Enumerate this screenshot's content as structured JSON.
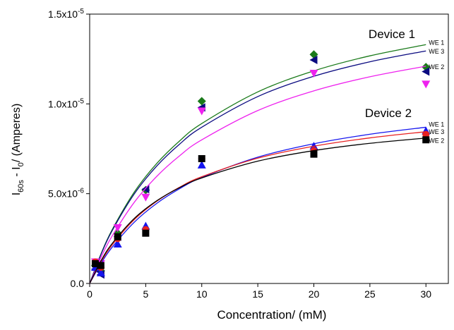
{
  "chart_data": {
    "type": "scatter",
    "x_label": "Concentration/ (mM)",
    "y_label": [
      "I",
      "60s",
      " - I",
      "0",
      "/ (Amperes)"
    ],
    "xlim": [
      0,
      32
    ],
    "xticks": [
      0,
      5,
      10,
      15,
      20,
      25,
      30
    ],
    "ylim": [
      0,
      1.5e-05
    ],
    "yticks": [
      {
        "value": 0,
        "label": [
          "0.0"
        ]
      },
      {
        "value": 5e-06,
        "label": [
          "5.0x10",
          "-6"
        ]
      },
      {
        "value": 1e-05,
        "label": [
          "1.0x10",
          "-5"
        ]
      },
      {
        "value": 1.5e-05,
        "label": [
          "1.5x10",
          "-5"
        ]
      }
    ],
    "x": [
      0.5,
      1,
      2.5,
      5,
      10,
      20,
      30
    ],
    "fit_x": [
      0,
      1,
      2,
      4,
      6,
      8,
      10,
      15,
      20,
      25,
      30
    ],
    "groups": [
      {
        "name": "Device 1",
        "series": [
          {
            "name": "WE 1",
            "color": "#1a7a1a",
            "marker": "diamond",
            "values": [
              1e-06,
              7e-07,
              2.8e-06,
              5.2e-06,
              1.015e-05,
              1.275e-05,
              1.205e-05
            ],
            "fit": [
              0,
              1.631e-06,
              2.986e-06,
              5.108e-06,
              6.694e-06,
              7.924e-06,
              8.906e-06,
              1.0668e-05,
              1.184e-05,
              1.2676e-05,
              1.33e-05
            ]
          },
          {
            "name": "WE 3",
            "color": "#0a0a80",
            "marker": "left-triangle",
            "values": [
              8e-07,
              5e-07,
              2.6e-06,
              5.25e-06,
              9.8e-06,
              1.245e-05,
              1.18e-05
            ],
            "fit": [
              0,
              1.602e-06,
              2.931e-06,
              5.005e-06,
              6.551e-06,
              7.747e-06,
              8.7e-06,
              1.0407e-05,
              1.1539e-05,
              1.2345e-05,
              1.295e-05
            ]
          },
          {
            "name": "WE 2",
            "color": "#ee22ee",
            "marker": "down-triangle",
            "values": [
              1.2e-06,
              1.1e-06,
              3.1e-06,
              4.8e-06,
              9.6e-06,
              1.17e-05,
              1.11e-05
            ],
            "fit": [
              0,
              1.435e-06,
              2.637e-06,
              4.538e-06,
              5.974e-06,
              7.097e-06,
              7.999e-06,
              9.631e-06,
              1.0725e-05,
              1.151e-05,
              1.21e-05
            ]
          }
        ]
      },
      {
        "name": "Device 2",
        "series": [
          {
            "name": "WE 1",
            "color": "#1515ee",
            "marker": "up-triangle",
            "values": [
              9e-07,
              6e-07,
              2.2e-06,
              3.2e-06,
              6.6e-06,
              7.65e-06,
              8.5e-06
            ],
            "fit": [
              0,
              1.105e-06,
              2.014e-06,
              3.424e-06,
              4.466e-06,
              5.267e-06,
              5.903e-06,
              7.035e-06,
              7.78e-06,
              8.309e-06,
              8.7e-06
            ]
          },
          {
            "name": "WE 3",
            "color": "#e82020",
            "marker": "circle",
            "values": [
              1.2e-06,
              9e-07,
              2.5e-06,
              3e-06,
              6.95e-06,
              7.4e-06,
              8.3e-06
            ],
            "fit": [
              0,
              1.189e-06,
              2.14e-06,
              3.567e-06,
              4.586e-06,
              5.35e-06,
              5.944e-06,
              6.978e-06,
              7.643e-06,
              8.106e-06,
              8.45e-06
            ]
          },
          {
            "name": "WE 2",
            "color": "#000000",
            "marker": "square",
            "values": [
              1.1e-06,
              1e-06,
              2.6e-06,
              2.8e-06,
              6.95e-06,
              7.2e-06,
              8e-06
            ],
            "fit": [
              0,
              1.249e-06,
              2.22e-06,
              3.633e-06,
              4.611e-06,
              5.328e-06,
              5.876e-06,
              6.811e-06,
              7.4e-06,
              7.805e-06,
              8.1e-06
            ]
          }
        ]
      }
    ]
  }
}
